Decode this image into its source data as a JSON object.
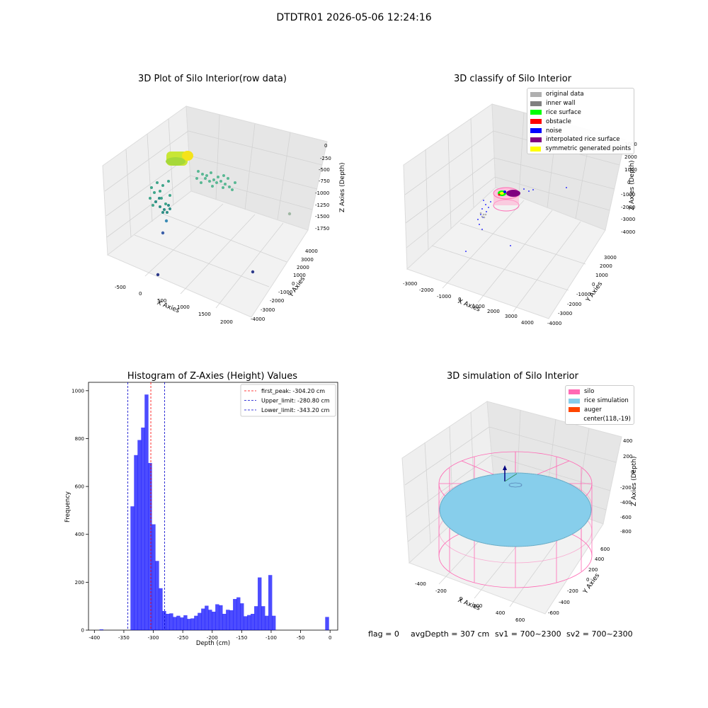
{
  "figure": {
    "suptitle": "DTDTR01 2026-05-06 12:24:16",
    "footer": {
      "flag": "flag = 0",
      "avg": "avgDepth = 307 cm",
      "sv1": "sv1 = 700~2300",
      "sv2": "sv2 = 700~2300"
    }
  },
  "panels": {
    "raw": {
      "title": "3D Plot of Silo Interior(row data)",
      "xlabel": "X Axies",
      "ylabel": "Y Axies",
      "zlabel": "Z Axies (Depth)",
      "xticks": [
        "-500",
        "0",
        "500",
        "1000",
        "1500",
        "2000"
      ],
      "yticks": [
        "-4000",
        "-3000",
        "-2000",
        "-1000",
        "0",
        "1000",
        "2000",
        "3000",
        "4000"
      ],
      "zticks": [
        "0",
        "-250",
        "-500",
        "-750",
        "-1000",
        "-1250",
        "-1500",
        "-1750"
      ]
    },
    "classify": {
      "title": "3D classify of Silo Interior",
      "xlabel": "X Axies",
      "ylabel": "Y Axies",
      "zlabel": "Z Axies (Depth)",
      "xticks": [
        "-3000",
        "-2000",
        "-1000",
        "0",
        "1000",
        "2000",
        "3000",
        "4000"
      ],
      "yticks": [
        "-4000",
        "-3000",
        "-2000",
        "-1000",
        "0",
        "1000",
        "2000",
        "3000"
      ],
      "zticks": [
        "3000",
        "2000",
        "1000",
        "0",
        "-1000",
        "-2000",
        "-3000",
        "-4000"
      ],
      "legend": [
        {
          "label": "original data",
          "color": "#b0b0b0"
        },
        {
          "label": "inner wall",
          "color": "#808080"
        },
        {
          "label": "rice surface",
          "color": "#00ff00"
        },
        {
          "label": "obstacle",
          "color": "#ff0000"
        },
        {
          "label": "noise",
          "color": "#0000ff"
        },
        {
          "label": "interpolated rice surface",
          "color": "#800080"
        },
        {
          "label": "symmetric generated points",
          "color": "#ffff00"
        }
      ]
    },
    "hist": {
      "title": "Histogram of Z-Axies (Height) Values"
    },
    "sim": {
      "title": "3D simulation of Silo Interior",
      "xlabel": "X Axies",
      "ylabel": "Y Axies",
      "zlabel": "Z Axies (Depth)",
      "xticks": [
        "-400",
        "-200",
        "0",
        "200",
        "400",
        "600"
      ],
      "yticks": [
        "-600",
        "-400",
        "-200",
        "0",
        "200",
        "400",
        "600"
      ],
      "zticks": [
        "400",
        "200",
        "0",
        "-200",
        "-400",
        "-600",
        "-800"
      ],
      "legend": [
        {
          "label": "silo",
          "color": "#ff69b4"
        },
        {
          "label": "rice simulation",
          "color": "#87ceeb"
        },
        {
          "label": "auger",
          "color": "#ff4500"
        },
        {
          "label": "center(118,-19)",
          "color": ""
        }
      ]
    }
  },
  "chart_data": [
    {
      "type": "histogram",
      "title": "Histogram of Z-Axies (Height) Values",
      "xlabel": "Depth (cm)",
      "ylabel": "Frequency",
      "xlim": [
        -410,
        13
      ],
      "ylim": [
        0,
        1035
      ],
      "xticks": [
        -400,
        -350,
        -300,
        -250,
        -200,
        -150,
        -100,
        -50,
        0
      ],
      "yticks": [
        0,
        200,
        400,
        600,
        800,
        1000
      ],
      "bar_color": "#0000ff",
      "bar_width": 6.5,
      "bars": [
        {
          "x": -388,
          "count": 3
        },
        {
          "x": -335.5,
          "count": 517
        },
        {
          "x": -329.5,
          "count": 731
        },
        {
          "x": -323.5,
          "count": 794
        },
        {
          "x": -317.5,
          "count": 846
        },
        {
          "x": -311.5,
          "count": 984
        },
        {
          "x": -305.5,
          "count": 698
        },
        {
          "x": -299.5,
          "count": 442
        },
        {
          "x": -293.5,
          "count": 289
        },
        {
          "x": -287.5,
          "count": 175
        },
        {
          "x": -281.5,
          "count": 80
        },
        {
          "x": -275.5,
          "count": 68
        },
        {
          "x": -269.5,
          "count": 70
        },
        {
          "x": -263.5,
          "count": 55
        },
        {
          "x": -257.5,
          "count": 60
        },
        {
          "x": -251.5,
          "count": 53
        },
        {
          "x": -245.5,
          "count": 62
        },
        {
          "x": -239.5,
          "count": 47
        },
        {
          "x": -233.5,
          "count": 49
        },
        {
          "x": -227.5,
          "count": 60
        },
        {
          "x": -221.5,
          "count": 72
        },
        {
          "x": -215.5,
          "count": 90
        },
        {
          "x": -209.5,
          "count": 102
        },
        {
          "x": -203.5,
          "count": 85
        },
        {
          "x": -197.5,
          "count": 77
        },
        {
          "x": -191.5,
          "count": 108
        },
        {
          "x": -185.5,
          "count": 104
        },
        {
          "x": -179.5,
          "count": 68
        },
        {
          "x": -173.5,
          "count": 85
        },
        {
          "x": -167.5,
          "count": 83
        },
        {
          "x": -161.5,
          "count": 130
        },
        {
          "x": -155.5,
          "count": 137
        },
        {
          "x": -149.5,
          "count": 112
        },
        {
          "x": -143.5,
          "count": 58
        },
        {
          "x": -137.5,
          "count": 63
        },
        {
          "x": -131.5,
          "count": 68
        },
        {
          "x": -125.5,
          "count": 100
        },
        {
          "x": -119.5,
          "count": 220
        },
        {
          "x": -113.5,
          "count": 100
        },
        {
          "x": -107.5,
          "count": 60
        },
        {
          "x": -101.5,
          "count": 230
        },
        {
          "x": -95.5,
          "count": 60
        },
        {
          "x": -5,
          "count": 55
        }
      ],
      "vlines": [
        {
          "label": "first_peak: -304.20 cm",
          "x": -304.2,
          "color": "#ff0000"
        },
        {
          "label": "Upper_limit: -280.80 cm",
          "x": -280.8,
          "color": "#0000cc"
        },
        {
          "label": "Lower_limit: -343.20 cm",
          "x": -343.2,
          "color": "#0000cc"
        }
      ]
    }
  ]
}
